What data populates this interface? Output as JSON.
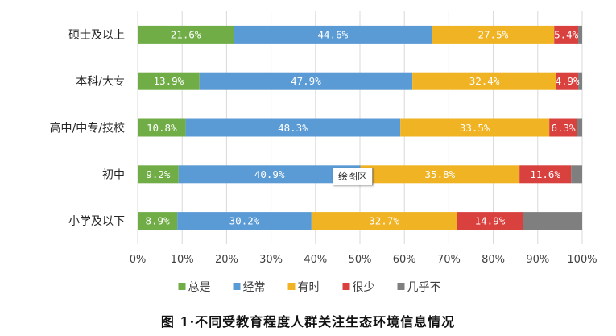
{
  "chart_data": {
    "type": "bar",
    "orientation": "horizontal",
    "stacked": "percent",
    "categories": [
      "硕士及以上",
      "本科/大专",
      "高中/中专/技校",
      "初中",
      "小学及以下"
    ],
    "series": [
      {
        "name": "总是",
        "color": "#70AD47",
        "values": [
          21.6,
          13.9,
          10.8,
          9.2,
          8.9
        ],
        "labels": [
          "21.6%",
          "13.9%",
          "10.8%",
          "9.2%",
          "8.9%"
        ]
      },
      {
        "name": "经常",
        "color": "#5B9BD5",
        "values": [
          44.6,
          47.9,
          48.3,
          40.9,
          30.2
        ],
        "labels": [
          "44.6%",
          "47.9%",
          "48.3%",
          "40.9%",
          "30.2%"
        ]
      },
      {
        "name": "有时",
        "color": "#F0B323",
        "values": [
          27.5,
          32.4,
          33.5,
          35.8,
          32.7
        ],
        "labels": [
          "27.5%",
          "32.4%",
          "33.5%",
          "35.8%",
          "32.7%"
        ]
      },
      {
        "name": "很少",
        "color": "#D9413F",
        "values": [
          5.4,
          4.9,
          6.3,
          11.6,
          14.9
        ],
        "labels": [
          "5.4%",
          "4.9%",
          "6.3%",
          "11.6%",
          "14.9%"
        ]
      },
      {
        "name": "几乎不",
        "color": "#7F7F7F",
        "values": [
          0.9,
          0.9,
          1.1,
          2.5,
          13.3
        ],
        "labels": [
          "",
          "",
          "",
          "",
          ""
        ]
      }
    ],
    "xlim": [
      0,
      100
    ],
    "xticks": [
      "0%",
      "10%",
      "20%",
      "30%",
      "40%",
      "50%",
      "60%",
      "70%",
      "80%",
      "90%",
      "100%"
    ],
    "grid": "vertical",
    "legend": "bottom"
  },
  "caption": "图 1·不同受教育程度人群关注生态环境信息情况",
  "tooltip": "绘图区"
}
